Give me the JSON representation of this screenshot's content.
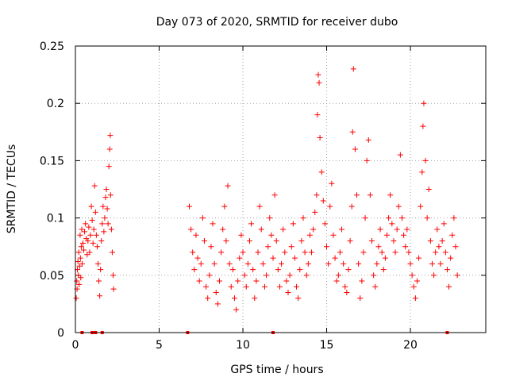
{
  "chart_data": {
    "type": "scatter",
    "title": "Day 073 of 2020, SRMTID for receiver dubo",
    "xlabel": "GPS time / hours",
    "ylabel": "SRMTID / TECUs",
    "xlim": [
      0,
      24.5
    ],
    "ylim": [
      0,
      0.25
    ],
    "x_ticks": [
      0,
      5,
      10,
      15,
      20
    ],
    "x_tick_labels": [
      "0",
      "5",
      "10",
      "15",
      "20"
    ],
    "y_ticks": [
      0,
      0.05,
      0.1,
      0.15,
      0.2,
      0.25
    ],
    "y_tick_labels": [
      "0",
      "0.05",
      "0.1",
      "0.15",
      "0.2",
      "0.25"
    ],
    "grid": true,
    "marker": "+",
    "series_color": "#ff0000",
    "zero_markers_x": [
      0.4,
      1.0,
      1.2,
      1.6,
      6.7,
      11.8,
      22.2
    ],
    "series": [
      {
        "name": "SRMTID",
        "points": [
          [
            0.05,
            0.03
          ],
          [
            0.08,
            0.045
          ],
          [
            0.1,
            0.038
          ],
          [
            0.12,
            0.055
          ],
          [
            0.15,
            0.062
          ],
          [
            0.18,
            0.05
          ],
          [
            0.2,
            0.07
          ],
          [
            0.22,
            0.042
          ],
          [
            0.25,
            0.058
          ],
          [
            0.28,
            0.085
          ],
          [
            0.3,
            0.065
          ],
          [
            0.32,
            0.048
          ],
          [
            0.35,
            0.075
          ],
          [
            0.38,
            0.09
          ],
          [
            0.4,
            0.06
          ],
          [
            0.45,
            0.078
          ],
          [
            0.5,
            0.072
          ],
          [
            0.55,
            0.088
          ],
          [
            0.6,
            0.095
          ],
          [
            0.65,
            0.082
          ],
          [
            0.7,
            0.068
          ],
          [
            0.75,
            0.08
          ],
          [
            0.8,
            0.092
          ],
          [
            0.85,
            0.07
          ],
          [
            0.9,
            0.085
          ],
          [
            0.95,
            0.11
          ],
          [
            1.0,
            0.098
          ],
          [
            1.05,
            0.078
          ],
          [
            1.1,
            0.09
          ],
          [
            1.15,
            0.128
          ],
          [
            1.2,
            0.105
          ],
          [
            1.25,
            0.085
          ],
          [
            1.3,
            0.075
          ],
          [
            1.35,
            0.06
          ],
          [
            1.4,
            0.045
          ],
          [
            1.45,
            0.032
          ],
          [
            1.5,
            0.055
          ],
          [
            1.55,
            0.08
          ],
          [
            1.6,
            0.095
          ],
          [
            1.65,
            0.11
          ],
          [
            1.7,
            0.088
          ],
          [
            1.75,
            0.1
          ],
          [
            1.8,
            0.118
          ],
          [
            1.85,
            0.125
          ],
          [
            1.9,
            0.108
          ],
          [
            1.95,
            0.095
          ],
          [
            2.0,
            0.145
          ],
          [
            2.05,
            0.16
          ],
          [
            2.08,
            0.172
          ],
          [
            2.1,
            0.12
          ],
          [
            2.15,
            0.09
          ],
          [
            2.2,
            0.07
          ],
          [
            2.25,
            0.05
          ],
          [
            2.28,
            0.038
          ],
          [
            6.8,
            0.11
          ],
          [
            6.9,
            0.09
          ],
          [
            7.0,
            0.07
          ],
          [
            7.1,
            0.055
          ],
          [
            7.2,
            0.085
          ],
          [
            7.3,
            0.065
          ],
          [
            7.4,
            0.045
          ],
          [
            7.5,
            0.06
          ],
          [
            7.6,
            0.1
          ],
          [
            7.7,
            0.08
          ],
          [
            7.8,
            0.04
          ],
          [
            7.9,
            0.03
          ],
          [
            8.0,
            0.05
          ],
          [
            8.1,
            0.075
          ],
          [
            8.2,
            0.095
          ],
          [
            8.3,
            0.06
          ],
          [
            8.4,
            0.035
          ],
          [
            8.5,
            0.025
          ],
          [
            8.6,
            0.045
          ],
          [
            8.7,
            0.07
          ],
          [
            8.8,
            0.09
          ],
          [
            8.9,
            0.11
          ],
          [
            9.0,
            0.08
          ],
          [
            9.1,
            0.128
          ],
          [
            9.2,
            0.06
          ],
          [
            9.3,
            0.04
          ],
          [
            9.4,
            0.055
          ],
          [
            9.5,
            0.03
          ],
          [
            9.6,
            0.02
          ],
          [
            9.7,
            0.045
          ],
          [
            9.8,
            0.065
          ],
          [
            9.9,
            0.085
          ],
          [
            10.0,
            0.07
          ],
          [
            10.1,
            0.05
          ],
          [
            10.2,
            0.04
          ],
          [
            10.3,
            0.06
          ],
          [
            10.4,
            0.08
          ],
          [
            10.5,
            0.095
          ],
          [
            10.6,
            0.055
          ],
          [
            10.7,
            0.03
          ],
          [
            10.8,
            0.045
          ],
          [
            10.9,
            0.07
          ],
          [
            11.0,
            0.11
          ],
          [
            11.1,
            0.09
          ],
          [
            11.2,
            0.06
          ],
          [
            11.3,
            0.04
          ],
          [
            11.4,
            0.05
          ],
          [
            11.5,
            0.075
          ],
          [
            11.6,
            0.1
          ],
          [
            11.7,
            0.085
          ],
          [
            11.8,
            0.065
          ],
          [
            11.9,
            0.12
          ],
          [
            12.0,
            0.08
          ],
          [
            12.1,
            0.055
          ],
          [
            12.2,
            0.04
          ],
          [
            12.3,
            0.06
          ],
          [
            12.4,
            0.09
          ],
          [
            12.5,
            0.07
          ],
          [
            12.6,
            0.045
          ],
          [
            12.7,
            0.035
          ],
          [
            12.8,
            0.05
          ],
          [
            12.9,
            0.075
          ],
          [
            13.0,
            0.095
          ],
          [
            13.1,
            0.065
          ],
          [
            13.2,
            0.04
          ],
          [
            13.3,
            0.03
          ],
          [
            13.4,
            0.055
          ],
          [
            13.5,
            0.08
          ],
          [
            13.6,
            0.1
          ],
          [
            13.7,
            0.07
          ],
          [
            13.8,
            0.05
          ],
          [
            13.9,
            0.06
          ],
          [
            14.0,
            0.085
          ],
          [
            14.1,
            0.07
          ],
          [
            14.2,
            0.09
          ],
          [
            14.3,
            0.105
          ],
          [
            14.4,
            0.12
          ],
          [
            14.45,
            0.19
          ],
          [
            14.5,
            0.225
          ],
          [
            14.55,
            0.218
          ],
          [
            14.6,
            0.17
          ],
          [
            14.7,
            0.14
          ],
          [
            14.8,
            0.115
          ],
          [
            14.9,
            0.095
          ],
          [
            15.0,
            0.075
          ],
          [
            15.1,
            0.06
          ],
          [
            15.2,
            0.11
          ],
          [
            15.3,
            0.13
          ],
          [
            15.4,
            0.085
          ],
          [
            15.5,
            0.065
          ],
          [
            15.6,
            0.045
          ],
          [
            15.7,
            0.05
          ],
          [
            15.8,
            0.07
          ],
          [
            15.9,
            0.09
          ],
          [
            16.0,
            0.06
          ],
          [
            16.1,
            0.04
          ],
          [
            16.2,
            0.035
          ],
          [
            16.3,
            0.055
          ],
          [
            16.4,
            0.08
          ],
          [
            16.5,
            0.11
          ],
          [
            16.55,
            0.175
          ],
          [
            16.6,
            0.23
          ],
          [
            16.7,
            0.16
          ],
          [
            16.8,
            0.12
          ],
          [
            16.9,
            0.06
          ],
          [
            17.0,
            0.03
          ],
          [
            17.1,
            0.045
          ],
          [
            17.2,
            0.07
          ],
          [
            17.3,
            0.1
          ],
          [
            17.4,
            0.15
          ],
          [
            17.5,
            0.168
          ],
          [
            17.6,
            0.12
          ],
          [
            17.7,
            0.08
          ],
          [
            17.8,
            0.05
          ],
          [
            17.9,
            0.04
          ],
          [
            18.0,
            0.06
          ],
          [
            18.1,
            0.075
          ],
          [
            18.2,
            0.09
          ],
          [
            18.3,
            0.07
          ],
          [
            18.4,
            0.055
          ],
          [
            18.5,
            0.065
          ],
          [
            18.6,
            0.085
          ],
          [
            18.7,
            0.1
          ],
          [
            18.8,
            0.12
          ],
          [
            18.9,
            0.095
          ],
          [
            19.0,
            0.08
          ],
          [
            19.1,
            0.07
          ],
          [
            19.2,
            0.09
          ],
          [
            19.3,
            0.11
          ],
          [
            19.4,
            0.155
          ],
          [
            19.5,
            0.1
          ],
          [
            19.6,
            0.085
          ],
          [
            19.7,
            0.075
          ],
          [
            19.8,
            0.09
          ],
          [
            19.9,
            0.07
          ],
          [
            20.0,
            0.06
          ],
          [
            20.1,
            0.05
          ],
          [
            20.2,
            0.04
          ],
          [
            20.3,
            0.03
          ],
          [
            20.4,
            0.045
          ],
          [
            20.5,
            0.065
          ],
          [
            20.6,
            0.11
          ],
          [
            20.7,
            0.14
          ],
          [
            20.75,
            0.18
          ],
          [
            20.8,
            0.2
          ],
          [
            20.9,
            0.15
          ],
          [
            21.0,
            0.1
          ],
          [
            21.1,
            0.125
          ],
          [
            21.2,
            0.08
          ],
          [
            21.3,
            0.06
          ],
          [
            21.4,
            0.05
          ],
          [
            21.5,
            0.07
          ],
          [
            21.6,
            0.09
          ],
          [
            21.7,
            0.075
          ],
          [
            21.8,
            0.06
          ],
          [
            21.9,
            0.08
          ],
          [
            22.0,
            0.095
          ],
          [
            22.1,
            0.07
          ],
          [
            22.2,
            0.055
          ],
          [
            22.3,
            0.04
          ],
          [
            22.4,
            0.065
          ],
          [
            22.5,
            0.085
          ],
          [
            22.6,
            0.1
          ],
          [
            22.7,
            0.075
          ],
          [
            22.8,
            0.05
          ]
        ]
      }
    ]
  }
}
